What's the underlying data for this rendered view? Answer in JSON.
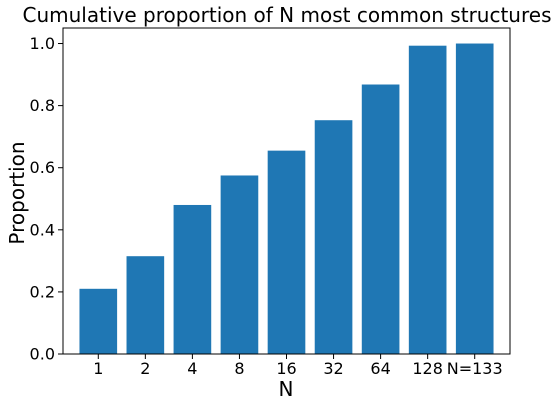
{
  "chart_data": {
    "type": "bar",
    "title": "Cumulative proportion of N most common structures",
    "xlabel": "N",
    "ylabel": "Proportion",
    "categories": [
      "1",
      "2",
      "4",
      "8",
      "16",
      "32",
      "64",
      "128",
      "N=133"
    ],
    "values": [
      0.21,
      0.315,
      0.48,
      0.575,
      0.655,
      0.753,
      0.868,
      0.993,
      1.0
    ],
    "ylim": [
      0,
      1.05
    ],
    "yticks": [
      "0.0",
      "0.2",
      "0.4",
      "0.6",
      "0.8",
      "1.0"
    ],
    "bar_color": "#1f77b4",
    "grid": false,
    "legend": "none"
  }
}
